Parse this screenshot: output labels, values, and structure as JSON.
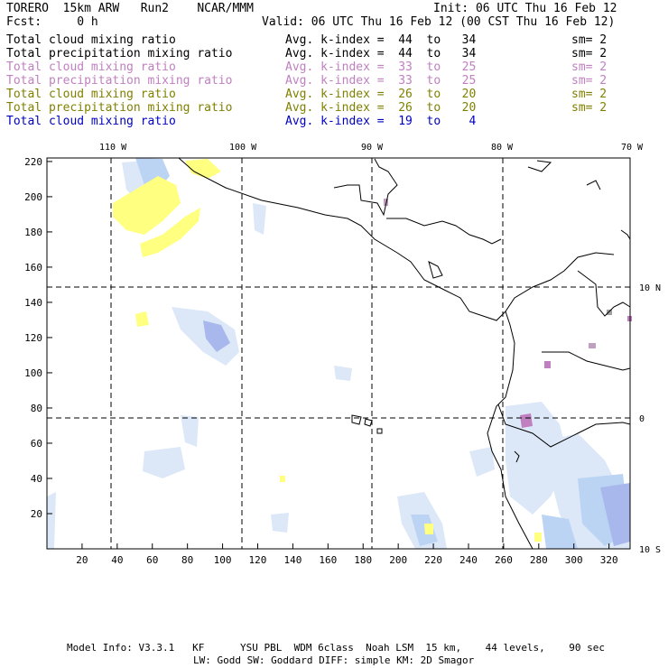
{
  "header": {
    "left": "TORERO  15km ARW   Run2    NCAR/MMM",
    "right": "Init: 06 UTC Thu 16 Feb 12",
    "fcst": "Fcst:     0 h",
    "valid": "Valid: 06 UTC Thu 16 Feb 12 (00 CST Thu 16 Feb 12)"
  },
  "legend": [
    {
      "field": "Total cloud mixing ratio",
      "avg": "Avg. k-index =  44  to   34",
      "sm": "sm= 2",
      "color": "#000000"
    },
    {
      "field": "Total precipitation mixing ratio",
      "avg": "Avg. k-index =  44  to   34",
      "sm": "sm= 2",
      "color": "#000000"
    },
    {
      "field": "Total cloud mixing ratio",
      "avg": "Avg. k-index =  33  to   25",
      "sm": "sm= 2",
      "color": "#c080c0"
    },
    {
      "field": "Total precipitation mixing ratio",
      "avg": "Avg. k-index =  33  to   25",
      "sm": "sm= 2",
      "color": "#c080c0"
    },
    {
      "field": "Total cloud mixing ratio",
      "avg": "Avg. k-index =  26  to   20",
      "sm": "sm= 2",
      "color": "#808000"
    },
    {
      "field": "Total precipitation mixing ratio",
      "avg": "Avg. k-index =  26  to   20",
      "sm": "sm= 2",
      "color": "#808000"
    },
    {
      "field": "Total cloud mixing ratio",
      "avg": "Avg. k-index =  19  to    4",
      "sm": "",
      "color": "#0000c0"
    }
  ],
  "map": {
    "lon_labels": [
      "110 W",
      "100 W",
      "90 W",
      "80 W",
      "70 W"
    ],
    "lon_values": [
      -110,
      -100,
      -90,
      -80,
      -70
    ],
    "lat_labels": [
      "10 N",
      "0",
      "10 S"
    ],
    "lat_values": [
      10,
      0,
      -10
    ],
    "x_ticks": [
      "20",
      "40",
      "60",
      "80",
      "100",
      "120",
      "140",
      "160",
      "180",
      "200",
      "220",
      "240",
      "260",
      "280",
      "300",
      "320"
    ],
    "y_ticks": [
      "20",
      "40",
      "60",
      "80",
      "100",
      "120",
      "140",
      "160",
      "180",
      "200",
      "220"
    ],
    "x_range": [
      0,
      332
    ],
    "y_range": [
      0,
      222
    ],
    "colors": {
      "cloud_light": "#dce8f8",
      "cloud_mid": "#bcd4f4",
      "cloud_dark": "#a8b8ec",
      "precip": "#ffff80",
      "high_k": "#c080c0",
      "coast": "#000000",
      "grid": "#000000"
    }
  },
  "footer": {
    "line1": "Model Info: V3.3.1   KF      YSU PBL  WDM 6class  Noah LSM  15 km,    44 levels,    90 sec",
    "line2": "LW: Godd SW: Goddard DIFF: simple KM: 2D Smagor"
  }
}
